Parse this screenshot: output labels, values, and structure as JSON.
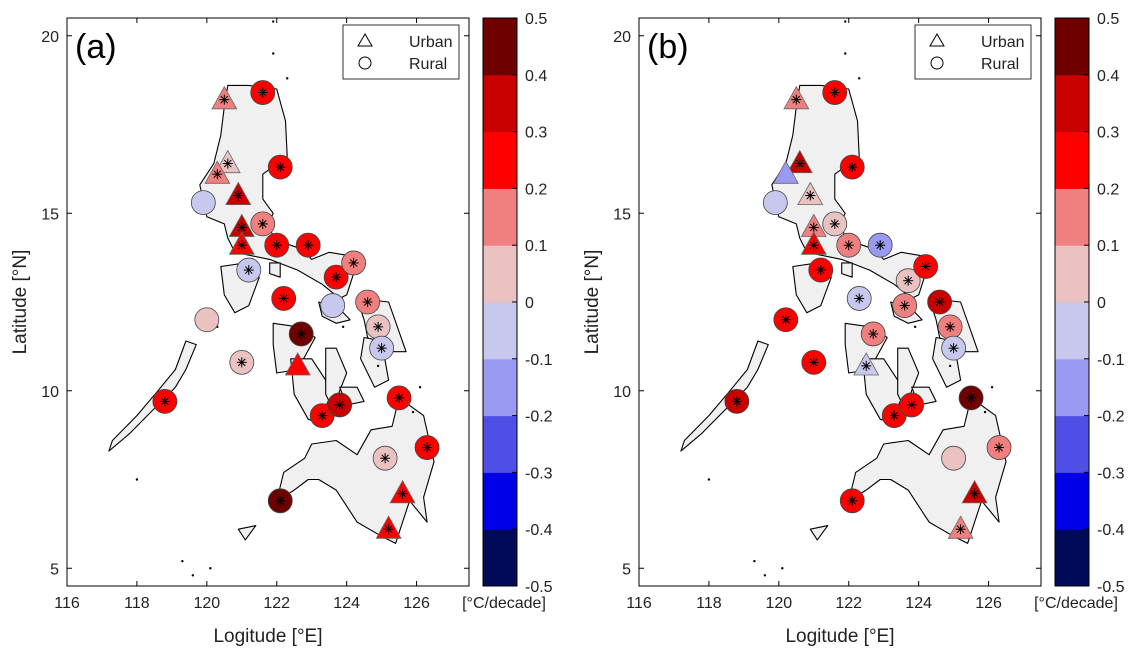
{
  "colorbar": {
    "ticks": [
      "-0.5",
      "-0.4",
      "-0.3",
      "-0.2",
      "-0.1",
      "0",
      "0.1",
      "0.2",
      "0.3",
      "0.4",
      "0.5"
    ],
    "unit": "[°C/decade]",
    "colors": [
      "#000a58",
      "#0000e6",
      "#4f4fe6",
      "#9a9af2",
      "#c8c8ee",
      "#eac2c2",
      "#f08080",
      "#ff0000",
      "#c80000",
      "#6e0000"
    ]
  },
  "land_color": "#f0f0f0",
  "marker_colors": {
    "c-0.1": "#c8c8ee",
    "c-0.2": "#9a9af2",
    "c0.1": "#eac2c2",
    "c0.2": "#f08080",
    "c0.3": "#ff0000",
    "c0.4": "#c80000",
    "c0.5": "#6e0000"
  },
  "chart_data": [
    {
      "type": "scatter",
      "panel_label": "(a)",
      "xlabel": "Logitude [°E]",
      "ylabel": "Latitude [°N]",
      "xlim": [
        116,
        127.5
      ],
      "ylim": [
        4.5,
        20.5
      ],
      "xticks": [
        "116",
        "118",
        "120",
        "122",
        "124",
        "126"
      ],
      "yticks": [
        "5",
        "10",
        "15",
        "20"
      ],
      "legend": {
        "position": "top-right",
        "entries": [
          "Urban",
          "Rural"
        ]
      },
      "stations": [
        {
          "type": "urban",
          "lon": 120.5,
          "lat": 18.2,
          "trend": "c0.2",
          "sig": true
        },
        {
          "type": "rural",
          "lon": 121.6,
          "lat": 18.4,
          "trend": "c0.3",
          "sig": true
        },
        {
          "type": "rural",
          "lon": 122.1,
          "lat": 16.3,
          "trend": "c0.3",
          "sig": true
        },
        {
          "type": "urban",
          "lon": 120.6,
          "lat": 16.4,
          "trend": "c0.1",
          "sig": true
        },
        {
          "type": "urban",
          "lon": 120.3,
          "lat": 16.1,
          "trend": "c0.2",
          "sig": true
        },
        {
          "type": "rural",
          "lon": 119.9,
          "lat": 15.3,
          "trend": "c-0.1",
          "sig": false
        },
        {
          "type": "urban",
          "lon": 120.9,
          "lat": 15.5,
          "trend": "c0.4",
          "sig": true
        },
        {
          "type": "urban",
          "lon": 121.0,
          "lat": 14.6,
          "trend": "c0.4",
          "sig": true
        },
        {
          "type": "urban",
          "lon": 121.0,
          "lat": 14.1,
          "trend": "c0.3",
          "sig": true
        },
        {
          "type": "rural",
          "lon": 121.6,
          "lat": 14.7,
          "trend": "c0.2",
          "sig": true
        },
        {
          "type": "rural",
          "lon": 122.0,
          "lat": 14.1,
          "trend": "c0.3",
          "sig": true
        },
        {
          "type": "rural",
          "lon": 122.9,
          "lat": 14.1,
          "trend": "c0.3",
          "sig": true
        },
        {
          "type": "rural",
          "lon": 121.2,
          "lat": 13.4,
          "trend": "c-0.1",
          "sig": true
        },
        {
          "type": "rural",
          "lon": 123.7,
          "lat": 13.2,
          "trend": "c0.3",
          "sig": true
        },
        {
          "type": "rural",
          "lon": 124.2,
          "lat": 13.6,
          "trend": "c0.2",
          "sig": true
        },
        {
          "type": "rural",
          "lon": 122.2,
          "lat": 12.6,
          "trend": "c0.3",
          "sig": true
        },
        {
          "type": "rural",
          "lon": 123.6,
          "lat": 12.4,
          "trend": "c-0.1",
          "sig": false
        },
        {
          "type": "rural",
          "lon": 124.6,
          "lat": 12.5,
          "trend": "c0.2",
          "sig": true
        },
        {
          "type": "rural",
          "lon": 120.0,
          "lat": 12.0,
          "trend": "c0.1",
          "sig": false
        },
        {
          "type": "rural",
          "lon": 122.7,
          "lat": 11.6,
          "trend": "c0.5",
          "sig": true
        },
        {
          "type": "rural",
          "lon": 124.9,
          "lat": 11.8,
          "trend": "c0.1",
          "sig": true
        },
        {
          "type": "rural",
          "lon": 125.0,
          "lat": 11.2,
          "trend": "c-0.1",
          "sig": true
        },
        {
          "type": "rural",
          "lon": 121.0,
          "lat": 10.8,
          "trend": "c0.1",
          "sig": true
        },
        {
          "type": "urban",
          "lon": 122.6,
          "lat": 10.7,
          "trend": "c0.3",
          "sig": false
        },
        {
          "type": "rural",
          "lon": 118.8,
          "lat": 9.7,
          "trend": "c0.3",
          "sig": true
        },
        {
          "type": "rural",
          "lon": 123.3,
          "lat": 9.3,
          "trend": "c0.3",
          "sig": true
        },
        {
          "type": "rural",
          "lon": 123.8,
          "lat": 9.6,
          "trend": "c0.4",
          "sig": true
        },
        {
          "type": "rural",
          "lon": 125.5,
          "lat": 9.8,
          "trend": "c0.3",
          "sig": true
        },
        {
          "type": "rural",
          "lon": 126.3,
          "lat": 8.4,
          "trend": "c0.3",
          "sig": true
        },
        {
          "type": "rural",
          "lon": 125.1,
          "lat": 8.1,
          "trend": "c0.1",
          "sig": true
        },
        {
          "type": "urban",
          "lon": 125.6,
          "lat": 7.1,
          "trend": "c0.3",
          "sig": true
        },
        {
          "type": "rural",
          "lon": 122.1,
          "lat": 6.9,
          "trend": "c0.5",
          "sig": true
        },
        {
          "type": "urban",
          "lon": 125.2,
          "lat": 6.1,
          "trend": "c0.3",
          "sig": true
        }
      ]
    },
    {
      "type": "scatter",
      "panel_label": "(b)",
      "xlabel": "Logitude [°E]",
      "ylabel": "Latitude [°N]",
      "xlim": [
        116,
        127.5
      ],
      "ylim": [
        4.5,
        20.5
      ],
      "xticks": [
        "116",
        "118",
        "120",
        "122",
        "124",
        "126"
      ],
      "yticks": [
        "5",
        "10",
        "15",
        "20"
      ],
      "legend": {
        "position": "top-right",
        "entries": [
          "Urban",
          "Rural"
        ]
      },
      "stations": [
        {
          "type": "urban",
          "lon": 120.5,
          "lat": 18.2,
          "trend": "c0.2",
          "sig": true
        },
        {
          "type": "rural",
          "lon": 121.6,
          "lat": 18.4,
          "trend": "c0.3",
          "sig": true
        },
        {
          "type": "rural",
          "lon": 122.1,
          "lat": 16.3,
          "trend": "c0.3",
          "sig": true
        },
        {
          "type": "urban",
          "lon": 120.6,
          "lat": 16.4,
          "trend": "c0.4",
          "sig": true
        },
        {
          "type": "urban",
          "lon": 120.2,
          "lat": 16.1,
          "trend": "c-0.2",
          "sig": false
        },
        {
          "type": "rural",
          "lon": 119.9,
          "lat": 15.3,
          "trend": "c-0.1",
          "sig": false
        },
        {
          "type": "urban",
          "lon": 120.9,
          "lat": 15.5,
          "trend": "c0.1",
          "sig": true
        },
        {
          "type": "urban",
          "lon": 121.0,
          "lat": 14.6,
          "trend": "c0.2",
          "sig": true
        },
        {
          "type": "urban",
          "lon": 121.0,
          "lat": 14.1,
          "trend": "c0.3",
          "sig": true
        },
        {
          "type": "rural",
          "lon": 121.6,
          "lat": 14.7,
          "trend": "c0.1",
          "sig": true
        },
        {
          "type": "rural",
          "lon": 122.0,
          "lat": 14.1,
          "trend": "c0.2",
          "sig": true
        },
        {
          "type": "rural",
          "lon": 122.9,
          "lat": 14.1,
          "trend": "c-0.2",
          "sig": true
        },
        {
          "type": "rural",
          "lon": 121.2,
          "lat": 13.4,
          "trend": "c0.3",
          "sig": true
        },
        {
          "type": "rural",
          "lon": 123.7,
          "lat": 13.1,
          "trend": "c0.1",
          "sig": true
        },
        {
          "type": "rural",
          "lon": 124.2,
          "lat": 13.5,
          "trend": "c0.3",
          "sig": true
        },
        {
          "type": "rural",
          "lon": 122.3,
          "lat": 12.6,
          "trend": "c-0.1",
          "sig": true
        },
        {
          "type": "rural",
          "lon": 123.6,
          "lat": 12.4,
          "trend": "c0.2",
          "sig": true
        },
        {
          "type": "rural",
          "lon": 124.6,
          "lat": 12.5,
          "trend": "c0.4",
          "sig": true
        },
        {
          "type": "rural",
          "lon": 120.2,
          "lat": 12.0,
          "trend": "c0.3",
          "sig": true
        },
        {
          "type": "rural",
          "lon": 122.7,
          "lat": 11.6,
          "trend": "c0.2",
          "sig": true
        },
        {
          "type": "rural",
          "lon": 124.9,
          "lat": 11.8,
          "trend": "c0.2",
          "sig": true
        },
        {
          "type": "rural",
          "lon": 125.0,
          "lat": 11.2,
          "trend": "c-0.1",
          "sig": true
        },
        {
          "type": "rural",
          "lon": 121.0,
          "lat": 10.8,
          "trend": "c0.3",
          "sig": true
        },
        {
          "type": "urban",
          "lon": 122.5,
          "lat": 10.7,
          "trend": "c-0.1",
          "sig": true
        },
        {
          "type": "rural",
          "lon": 118.8,
          "lat": 9.7,
          "trend": "c0.4",
          "sig": true
        },
        {
          "type": "rural",
          "lon": 123.3,
          "lat": 9.3,
          "trend": "c0.3",
          "sig": true
        },
        {
          "type": "rural",
          "lon": 123.8,
          "lat": 9.6,
          "trend": "c0.3",
          "sig": true
        },
        {
          "type": "rural",
          "lon": 125.5,
          "lat": 9.8,
          "trend": "c0.5",
          "sig": true
        },
        {
          "type": "rural",
          "lon": 126.3,
          "lat": 8.4,
          "trend": "c0.2",
          "sig": true
        },
        {
          "type": "rural",
          "lon": 125.0,
          "lat": 8.1,
          "trend": "c0.1",
          "sig": false
        },
        {
          "type": "urban",
          "lon": 125.6,
          "lat": 7.1,
          "trend": "c0.4",
          "sig": true
        },
        {
          "type": "rural",
          "lon": 122.1,
          "lat": 6.9,
          "trend": "c0.3",
          "sig": true
        },
        {
          "type": "urban",
          "lon": 125.2,
          "lat": 6.1,
          "trend": "c0.2",
          "sig": true
        }
      ]
    }
  ]
}
